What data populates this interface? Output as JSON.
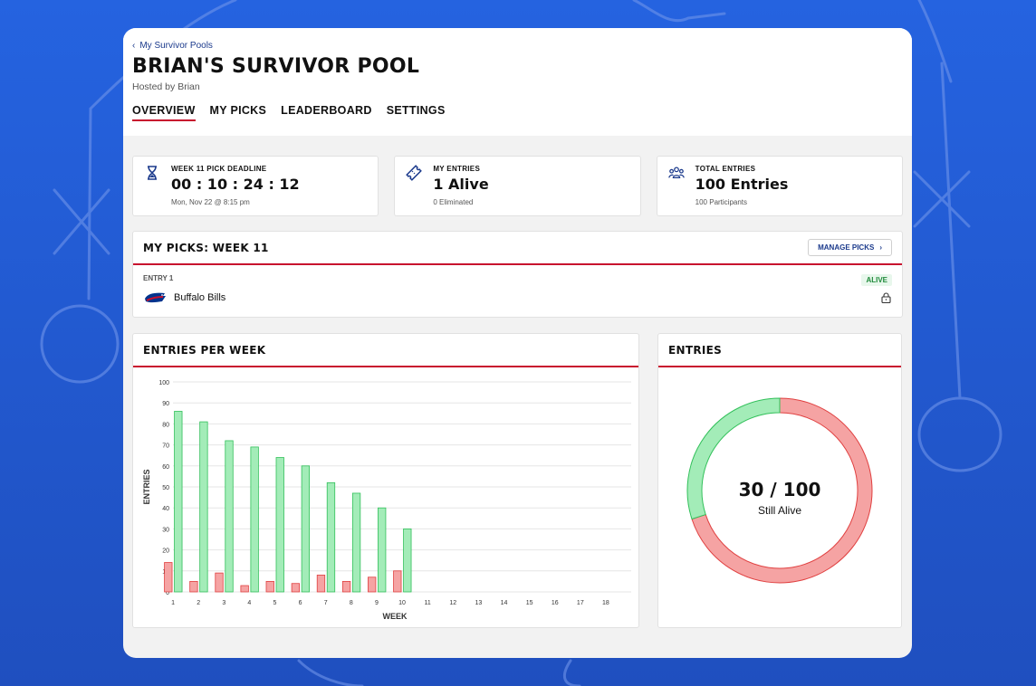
{
  "header": {
    "back_label": "My Survivor Pools",
    "title": "BRIAN'S SURVIVOR POOL",
    "host": "Hosted by Brian",
    "tabs": [
      {
        "label": "OVERVIEW",
        "active": true
      },
      {
        "label": "MY PICKS",
        "active": false
      },
      {
        "label": "LEADERBOARD",
        "active": false
      },
      {
        "label": "SETTINGS",
        "active": false
      }
    ]
  },
  "stats": {
    "deadline": {
      "label": "WEEK 11 PICK DEADLINE",
      "value": "00 : 10 : 24 : 12",
      "sub": "Mon, Nov 22 @ 8:15 pm",
      "icon": "hourglass-icon"
    },
    "my_entries": {
      "label": "MY ENTRIES",
      "value": "1 Alive",
      "sub": "0 Eliminated",
      "icon": "ticket-icon"
    },
    "total_entries": {
      "label": "TOTAL ENTRIES",
      "value": "100 Entries",
      "sub": "100 Participants",
      "icon": "users-icon"
    }
  },
  "picks": {
    "title": "MY PICKS: WEEK 11",
    "manage_label": "MANAGE PICKS",
    "entry_label": "ENTRY 1",
    "team": "Buffalo Bills",
    "status": "ALIVE"
  },
  "entries_panel": {
    "title": "ENTRIES",
    "center_value": "30 / 100",
    "center_label": "Still Alive"
  },
  "colors": {
    "alive": "#a3ecb8",
    "alive_stroke": "#32c05a",
    "eliminated": "#f5a3a3",
    "eliminated_stroke": "#e04040",
    "accent": "#c8102e",
    "brand": "#1b3a8c"
  },
  "chart_data": [
    {
      "type": "bar",
      "title": "ENTRIES PER WEEK",
      "xlabel": "WEEK",
      "ylabel": "ENTRIES",
      "ylim": [
        0,
        100
      ],
      "yticks": [
        0,
        10,
        20,
        30,
        40,
        50,
        60,
        70,
        80,
        90,
        100
      ],
      "categories": [
        "1",
        "2",
        "3",
        "4",
        "5",
        "6",
        "7",
        "8",
        "9",
        "10",
        "11",
        "12",
        "13",
        "14",
        "15",
        "16",
        "17",
        "18"
      ],
      "series": [
        {
          "key": "eliminated",
          "values": [
            14,
            5,
            9,
            3,
            5,
            4,
            8,
            5,
            7,
            10,
            null,
            null,
            null,
            null,
            null,
            null,
            null,
            null
          ]
        },
        {
          "key": "alive",
          "values": [
            86,
            81,
            72,
            69,
            64,
            60,
            52,
            47,
            40,
            30,
            null,
            null,
            null,
            null,
            null,
            null,
            null,
            null
          ]
        }
      ],
      "grid": true
    },
    {
      "type": "pie",
      "slices": [
        {
          "key": "alive",
          "value": 30
        },
        {
          "key": "eliminated",
          "value": 70
        }
      ]
    }
  ]
}
